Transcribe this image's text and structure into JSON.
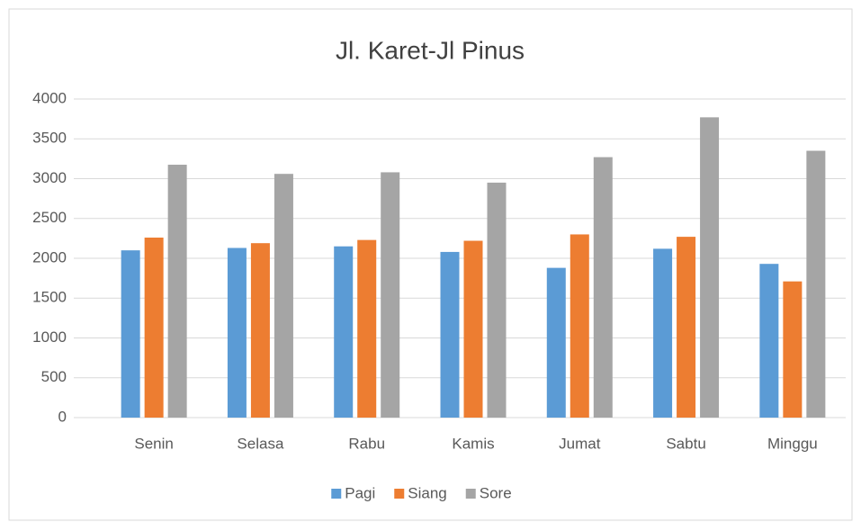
{
  "chart_data": {
    "type": "bar",
    "title": "Jl. Karet-Jl Pinus",
    "categories": [
      "Senin",
      "Selasa",
      "Rabu",
      "Kamis",
      "Jumat",
      "Sabtu",
      "Minggu"
    ],
    "series": [
      {
        "name": "Pagi",
        "color": "#5b9bd5",
        "values": [
          2100,
          2130,
          2150,
          2080,
          1880,
          2120,
          1930
        ]
      },
      {
        "name": "Siang",
        "color": "#ed7d31",
        "values": [
          2260,
          2190,
          2230,
          2220,
          2300,
          2270,
          1710
        ]
      },
      {
        "name": "Sore",
        "color": "#a5a5a5",
        "values": [
          3175,
          3060,
          3080,
          2950,
          3270,
          3770,
          3350
        ]
      }
    ],
    "ylim": [
      0,
      4000
    ],
    "yticks": [
      0,
      500,
      1000,
      1500,
      2000,
      2500,
      3000,
      3500,
      4000
    ],
    "grid": true,
    "legend": "bottom"
  }
}
